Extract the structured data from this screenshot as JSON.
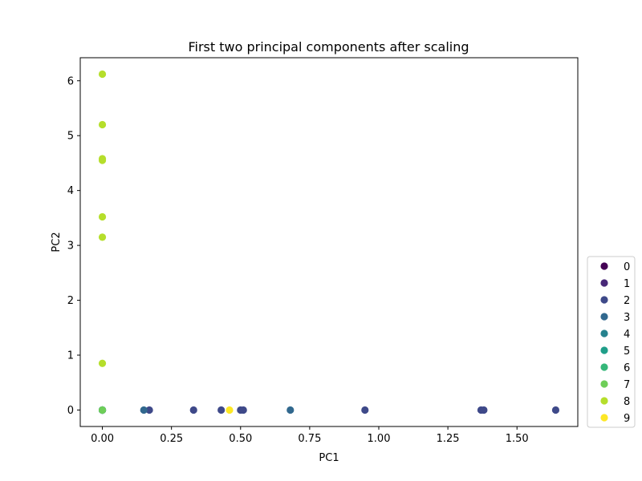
{
  "chart_data": {
    "type": "scatter",
    "title": "First two principal components after scaling",
    "xlabel": "PC1",
    "ylabel": "PC2",
    "xlim": [
      -0.08,
      1.72
    ],
    "ylim": [
      -0.3,
      6.42
    ],
    "xticks": [
      0.0,
      0.25,
      0.5,
      0.75,
      1.0,
      1.25,
      1.5
    ],
    "xtick_labels": [
      "0.00",
      "0.25",
      "0.50",
      "0.75",
      "1.00",
      "1.25",
      "1.50"
    ],
    "yticks": [
      0,
      1,
      2,
      3,
      4,
      5,
      6
    ],
    "ytick_labels": [
      "0",
      "1",
      "2",
      "3",
      "4",
      "5",
      "6"
    ],
    "grid": false,
    "legend_position": "outside-bottom-right",
    "colormap": "viridis",
    "series": [
      {
        "name": "0",
        "color": "#440154",
        "points": [
          [
            0.0,
            0.0
          ]
        ]
      },
      {
        "name": "1",
        "color": "#482878",
        "points": [
          [
            0.0,
            0.0
          ]
        ]
      },
      {
        "name": "2",
        "color": "#3e4989",
        "points": [
          [
            0.0,
            0.0
          ],
          [
            0.17,
            0.0
          ],
          [
            0.33,
            0.0
          ],
          [
            0.43,
            0.0
          ],
          [
            0.5,
            0.0
          ],
          [
            0.51,
            0.0
          ],
          [
            0.95,
            0.0
          ],
          [
            1.37,
            0.0
          ],
          [
            1.38,
            0.0
          ],
          [
            1.64,
            0.0
          ]
        ]
      },
      {
        "name": "3",
        "color": "#31688e",
        "points": [
          [
            0.0,
            0.0
          ],
          [
            0.15,
            0.0
          ],
          [
            0.68,
            0.0
          ]
        ]
      },
      {
        "name": "4",
        "color": "#26828e",
        "points": [
          [
            0.0,
            0.0
          ]
        ]
      },
      {
        "name": "5",
        "color": "#1f9e89",
        "points": [
          [
            0.0,
            0.0
          ]
        ]
      },
      {
        "name": "6",
        "color": "#35b779",
        "points": [
          [
            0.0,
            0.0
          ]
        ]
      },
      {
        "name": "7",
        "color": "#6ece58",
        "points": [
          [
            0.0,
            0.0
          ]
        ]
      },
      {
        "name": "8",
        "color": "#b5de2b",
        "points": [
          [
            0.0,
            0.85
          ],
          [
            0.0,
            3.15
          ],
          [
            0.0,
            3.52
          ],
          [
            0.0,
            4.55
          ],
          [
            0.0,
            4.58
          ],
          [
            0.0,
            5.2
          ],
          [
            0.0,
            6.12
          ]
        ]
      },
      {
        "name": "9",
        "color": "#fde725",
        "points": [
          [
            0.46,
            0.0
          ]
        ]
      }
    ]
  }
}
